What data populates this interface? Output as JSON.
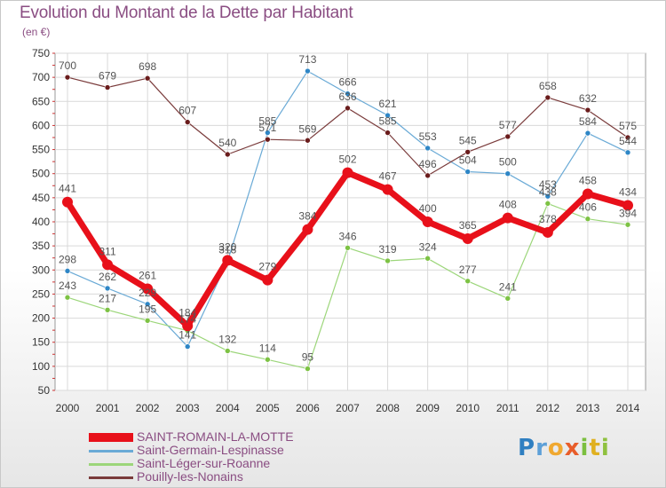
{
  "title": "Evolution du Montant de la Dette par Habitant",
  "subtitle": "(en €)",
  "logo": {
    "text": "Proxiti",
    "letters": [
      {
        "ch": "P",
        "color": "#2f7fc1"
      },
      {
        "ch": "r",
        "color": "#5da0d8"
      },
      {
        "ch": "o",
        "color": "#f0a830"
      },
      {
        "ch": "x",
        "color": "#e85d2a"
      },
      {
        "ch": "i",
        "color": "#7bbf3f"
      },
      {
        "ch": "t",
        "color": "#e0b020"
      },
      {
        "ch": "i",
        "color": "#8fc13f"
      }
    ]
  },
  "chart_data": {
    "type": "line",
    "x": [
      "2000",
      "2001",
      "2002",
      "2003",
      "2004",
      "2005",
      "2006",
      "2007",
      "2008",
      "2009",
      "2010",
      "2011",
      "2012",
      "2013",
      "2014"
    ],
    "ylim": [
      50,
      750
    ],
    "yticks": [
      50,
      100,
      150,
      200,
      250,
      300,
      350,
      400,
      450,
      500,
      550,
      600,
      650,
      700,
      750
    ],
    "grid": true,
    "legend_position": "bottom-left",
    "series": [
      {
        "name": "SAINT-ROMAIN-LA-MOTTE",
        "color": "#e8101a",
        "width": 7,
        "marker_color": "#e8101a",
        "values": [
          441,
          311,
          261,
          184,
          320,
          279,
          384,
          502,
          467,
          400,
          365,
          408,
          378,
          458,
          434
        ]
      },
      {
        "name": "Saint-Germain-Lespinasse",
        "color": "#6aaad6",
        "width": 1.2,
        "marker_color": "#2e86c6",
        "values": [
          298,
          262,
          229,
          141,
          318,
          585,
          713,
          666,
          621,
          553,
          504,
          500,
          453,
          584,
          544
        ]
      },
      {
        "name": "Saint-Léger-sur-Roanne",
        "color": "#9cd67a",
        "width": 1.2,
        "marker_color": "#7dc244",
        "values": [
          243,
          217,
          195,
          174,
          132,
          114,
          95,
          346,
          319,
          324,
          277,
          241,
          438,
          406,
          394
        ]
      },
      {
        "name": "Pouilly-les-Nonains",
        "color": "#7a3b3b",
        "width": 1.2,
        "marker_color": "#6a1c1c",
        "values": [
          700,
          679,
          698,
          607,
          540,
          571,
          569,
          636,
          585,
          496,
          545,
          577,
          658,
          632,
          575
        ]
      }
    ],
    "labels": [
      {
        "series": 0,
        "i": 0,
        "text": "441"
      },
      {
        "series": 0,
        "i": 1,
        "text": "311"
      },
      {
        "series": 0,
        "i": 2,
        "text": "261"
      },
      {
        "series": 0,
        "i": 3,
        "text": "184"
      },
      {
        "series": 0,
        "i": 4,
        "text": "320"
      },
      {
        "series": 0,
        "i": 5,
        "text": "279"
      },
      {
        "series": 0,
        "i": 6,
        "text": "384"
      },
      {
        "series": 0,
        "i": 7,
        "text": "502"
      },
      {
        "series": 0,
        "i": 8,
        "text": "467"
      },
      {
        "series": 0,
        "i": 9,
        "text": "400"
      },
      {
        "series": 0,
        "i": 10,
        "text": "365"
      },
      {
        "series": 0,
        "i": 11,
        "text": "408"
      },
      {
        "series": 0,
        "i": 12,
        "text": "378"
      },
      {
        "series": 0,
        "i": 13,
        "text": "458"
      },
      {
        "series": 0,
        "i": 14,
        "text": "434"
      },
      {
        "series": 1,
        "i": 0,
        "text": "298"
      },
      {
        "series": 1,
        "i": 1,
        "text": "262"
      },
      {
        "series": 1,
        "i": 2,
        "text": "229"
      },
      {
        "series": 1,
        "i": 3,
        "text": "141"
      },
      {
        "series": 1,
        "i": 4,
        "text": "318"
      },
      {
        "series": 1,
        "i": 5,
        "text": "585"
      },
      {
        "series": 1,
        "i": 6,
        "text": "713"
      },
      {
        "series": 1,
        "i": 7,
        "text": "666"
      },
      {
        "series": 1,
        "i": 8,
        "text": "621"
      },
      {
        "series": 1,
        "i": 9,
        "text": "553"
      },
      {
        "series": 1,
        "i": 10,
        "text": "504"
      },
      {
        "series": 1,
        "i": 11,
        "text": "500"
      },
      {
        "series": 1,
        "i": 12,
        "text": "453"
      },
      {
        "series": 1,
        "i": 13,
        "text": "584"
      },
      {
        "series": 1,
        "i": 14,
        "text": "544"
      },
      {
        "series": 2,
        "i": 0,
        "text": "243"
      },
      {
        "series": 2,
        "i": 1,
        "text": "217"
      },
      {
        "series": 2,
        "i": 2,
        "text": "195"
      },
      {
        "series": 2,
        "i": 3,
        "text": "174"
      },
      {
        "series": 2,
        "i": 4,
        "text": "132"
      },
      {
        "series": 2,
        "i": 5,
        "text": "114"
      },
      {
        "series": 2,
        "i": 6,
        "text": "95"
      },
      {
        "series": 2,
        "i": 7,
        "text": "346"
      },
      {
        "series": 2,
        "i": 8,
        "text": "319"
      },
      {
        "series": 2,
        "i": 9,
        "text": "324"
      },
      {
        "series": 2,
        "i": 10,
        "text": "277"
      },
      {
        "series": 2,
        "i": 11,
        "text": "241"
      },
      {
        "series": 2,
        "i": 12,
        "text": "438"
      },
      {
        "series": 2,
        "i": 13,
        "text": "406"
      },
      {
        "series": 2,
        "i": 14,
        "text": "394"
      },
      {
        "series": 3,
        "i": 0,
        "text": "700"
      },
      {
        "series": 3,
        "i": 1,
        "text": "679"
      },
      {
        "series": 3,
        "i": 2,
        "text": "698"
      },
      {
        "series": 3,
        "i": 3,
        "text": "607"
      },
      {
        "series": 3,
        "i": 4,
        "text": "540"
      },
      {
        "series": 3,
        "i": 5,
        "text": "571"
      },
      {
        "series": 3,
        "i": 6,
        "text": "569"
      },
      {
        "series": 3,
        "i": 7,
        "text": "636"
      },
      {
        "series": 3,
        "i": 8,
        "text": "585"
      },
      {
        "series": 3,
        "i": 9,
        "text": "496"
      },
      {
        "series": 3,
        "i": 10,
        "text": "545"
      },
      {
        "series": 3,
        "i": 11,
        "text": "577"
      },
      {
        "series": 3,
        "i": 12,
        "text": "658"
      },
      {
        "series": 3,
        "i": 13,
        "text": "632"
      },
      {
        "series": 3,
        "i": 14,
        "text": "575"
      }
    ]
  }
}
